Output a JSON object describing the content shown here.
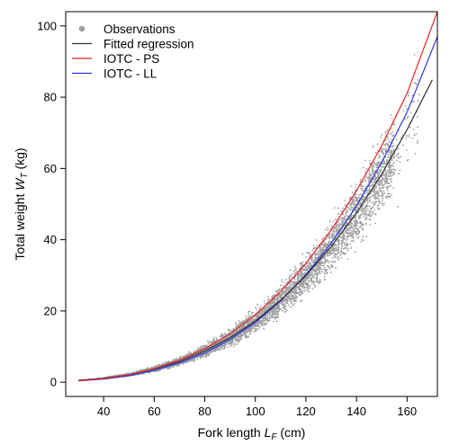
{
  "chart_data": {
    "type": "scatter",
    "title": "",
    "xlabel": {
      "main": "Fork length ",
      "italic": "L",
      "sub": "F",
      "rest": " (cm)"
    },
    "ylabel": {
      "main": "Total weight ",
      "italic": "W",
      "sub": "T",
      "rest": " (kg)"
    },
    "xlim": [
      25,
      172
    ],
    "ylim": [
      -4,
      104
    ],
    "x_ticks": [
      40,
      60,
      80,
      100,
      120,
      140,
      160
    ],
    "y_ticks": [
      0,
      20,
      40,
      60,
      80,
      100
    ],
    "legend_position": "top-left",
    "legend": [
      {
        "label": "Observations",
        "kind": "point",
        "color": "#a0a0a0"
      },
      {
        "label": "Fitted regression",
        "kind": "line",
        "color": "#333333"
      },
      {
        "label": "IOTC - PS",
        "kind": "line",
        "color": "#e8242a"
      },
      {
        "label": "IOTC - LL",
        "kind": "line",
        "color": "#2b3be8"
      }
    ],
    "observations": {
      "color": "#a0a0a0",
      "x_range": [
        30,
        165
      ],
      "x_dense_range": [
        40,
        155
      ]
    },
    "series": [
      {
        "name": "Fitted regression",
        "color": "#333333",
        "x": [
          30,
          40,
          50,
          60,
          70,
          80,
          90,
          100,
          110,
          120,
          130,
          140,
          150,
          160,
          170
        ],
        "y": [
          0.5,
          1.1,
          2.1,
          3.7,
          5.8,
          8.8,
          12.5,
          17.2,
          23.0,
          29.9,
          38.1,
          47.5,
          58.4,
          70.9,
          84.9
        ]
      },
      {
        "name": "IOTC - PS",
        "color": "#e8242a",
        "x": [
          30,
          40,
          50,
          60,
          70,
          80,
          90,
          100,
          110,
          120,
          130,
          140,
          150,
          160,
          172
        ],
        "y": [
          0.4,
          1.0,
          2.1,
          3.8,
          6.2,
          9.4,
          13.6,
          18.9,
          25.4,
          33.3,
          42.7,
          53.7,
          66.4,
          81.1,
          104.0
        ]
      },
      {
        "name": "IOTC - LL",
        "color": "#2b3be8",
        "x": [
          30,
          40,
          50,
          60,
          70,
          80,
          90,
          100,
          110,
          120,
          130,
          140,
          150,
          160,
          172
        ],
        "y": [
          0.4,
          0.9,
          1.8,
          3.3,
          5.4,
          8.2,
          12.0,
          16.8,
          22.8,
          30.2,
          39.0,
          49.5,
          61.7,
          75.8,
          97.0
        ]
      }
    ]
  }
}
